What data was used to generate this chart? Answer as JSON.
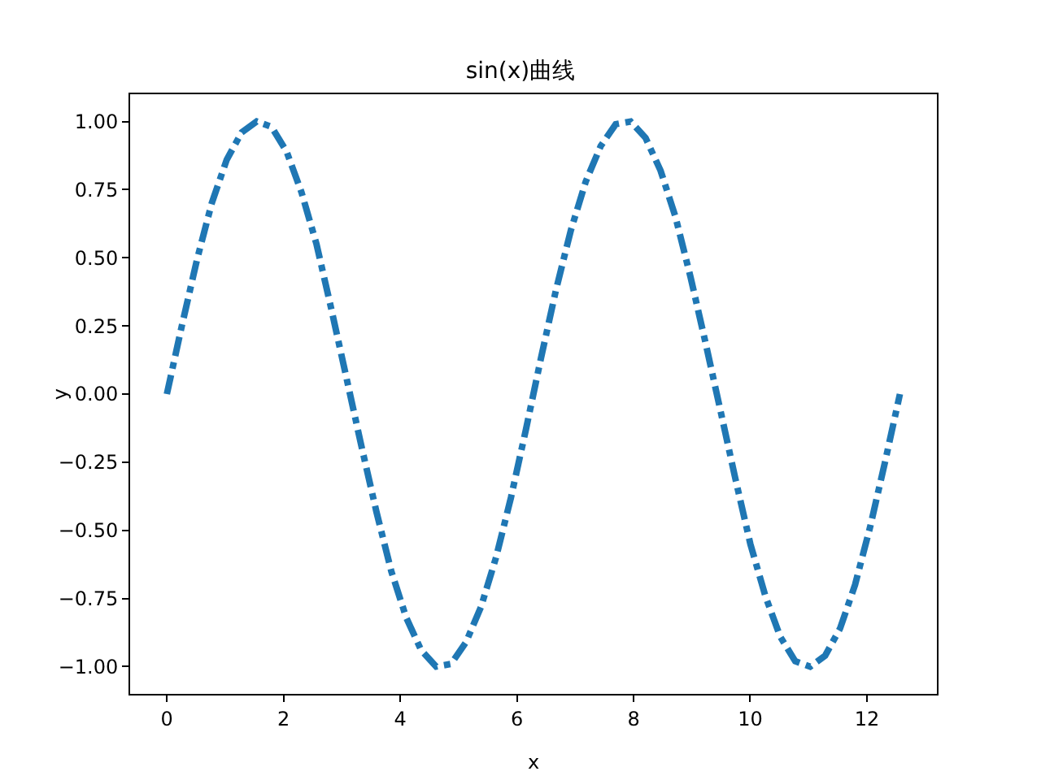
{
  "chart_data": {
    "type": "line",
    "title": "sin(x)曲线",
    "xlabel": "x",
    "ylabel": "y",
    "x": [
      0,
      0.256,
      0.513,
      0.769,
      1.026,
      1.282,
      1.539,
      1.795,
      2.052,
      2.308,
      2.565,
      2.821,
      3.078,
      3.334,
      3.59,
      3.847,
      4.103,
      4.36,
      4.616,
      4.873,
      5.129,
      5.386,
      5.642,
      5.898,
      6.155,
      6.411,
      6.668,
      6.924,
      7.181,
      7.437,
      7.694,
      7.95,
      8.206,
      8.463,
      8.719,
      8.976,
      9.232,
      9.489,
      9.745,
      10.002,
      10.258,
      10.514,
      10.771,
      11.027,
      11.284,
      11.54,
      11.797,
      12.053,
      12.31,
      12.566
    ],
    "series": [
      {
        "color": "#1f77b4",
        "values": [
          0,
          0.25,
          0.49,
          0.7,
          0.86,
          0.96,
          1.0,
          0.98,
          0.89,
          0.74,
          0.55,
          0.31,
          0.06,
          -0.19,
          -0.43,
          -0.65,
          -0.82,
          -0.94,
          -1.0,
          -0.99,
          -0.91,
          -0.78,
          -0.6,
          -0.38,
          -0.13,
          0.13,
          0.38,
          0.6,
          0.78,
          0.91,
          0.99,
          1.0,
          0.94,
          0.82,
          0.65,
          0.43,
          0.19,
          -0.06,
          -0.31,
          -0.55,
          -0.74,
          -0.89,
          -0.98,
          -1.0,
          -0.96,
          -0.86,
          -0.7,
          -0.49,
          -0.25,
          0
        ]
      }
    ],
    "xlim": [
      -0.63,
      13.2
    ],
    "xticks": [
      0,
      2,
      4,
      6,
      8,
      10,
      12
    ],
    "ylim": [
      -1.1,
      1.1
    ],
    "yticks": [
      {
        "value": -1,
        "label": "−1.00"
      },
      {
        "value": -0.75,
        "label": "−0.75"
      },
      {
        "value": -0.5,
        "label": "−0.50"
      },
      {
        "value": -0.25,
        "label": "−0.25"
      },
      {
        "value": 0,
        "label": "0.00"
      },
      {
        "value": 0.25,
        "label": "0.25"
      },
      {
        "value": 0.5,
        "label": "0.50"
      },
      {
        "value": 0.75,
        "label": "0.75"
      },
      {
        "value": 1,
        "label": "1.00"
      }
    ],
    "marker": "none",
    "line_style": "dashed"
  }
}
